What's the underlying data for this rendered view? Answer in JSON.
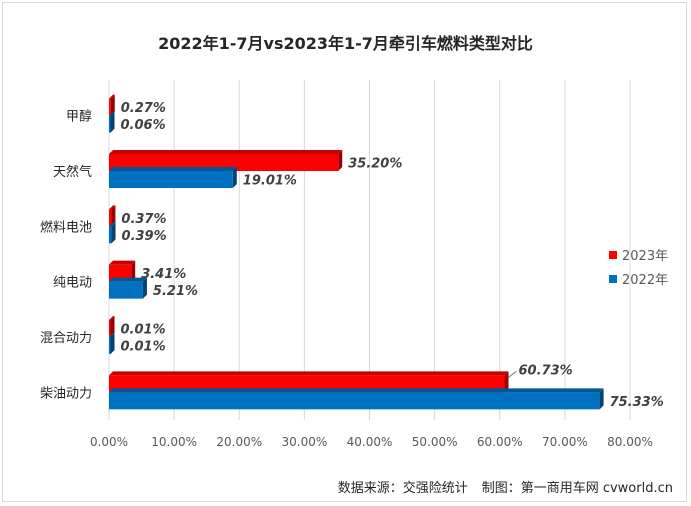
{
  "chart_data": {
    "type": "bar",
    "orientation": "horizontal",
    "title": "2022年1-7月vs2023年1-7月牵引车燃料类型对比",
    "categories": [
      "甲醇",
      "天然气",
      "燃料电池",
      "纯电动",
      "混合动力",
      "柴油动力"
    ],
    "series": [
      {
        "name": "2023年",
        "color": "#ff0000",
        "values": [
          0.27,
          35.2,
          0.37,
          3.41,
          0.01,
          60.73
        ],
        "labels": [
          "0.27%",
          "35.20%",
          "0.37%",
          "3.41%",
          "0.01%",
          "60.73%"
        ]
      },
      {
        "name": "2022年",
        "color": "#0070c0",
        "values": [
          0.06,
          19.01,
          0.39,
          5.21,
          0.01,
          75.33
        ],
        "labels": [
          "0.06%",
          "19.01%",
          "0.39%",
          "5.21%",
          "0.01%",
          "75.33%"
        ]
      }
    ],
    "xlim": [
      0,
      80
    ],
    "xticks": [
      "0.00%",
      "10.00%",
      "20.00%",
      "30.00%",
      "40.00%",
      "50.00%",
      "60.00%",
      "70.00%",
      "80.00%"
    ],
    "grid": true,
    "legend": "right"
  },
  "footer": {
    "source": "数据来源：交强险统计",
    "maker": "制图：第一商用车网 cvworld.cn"
  }
}
